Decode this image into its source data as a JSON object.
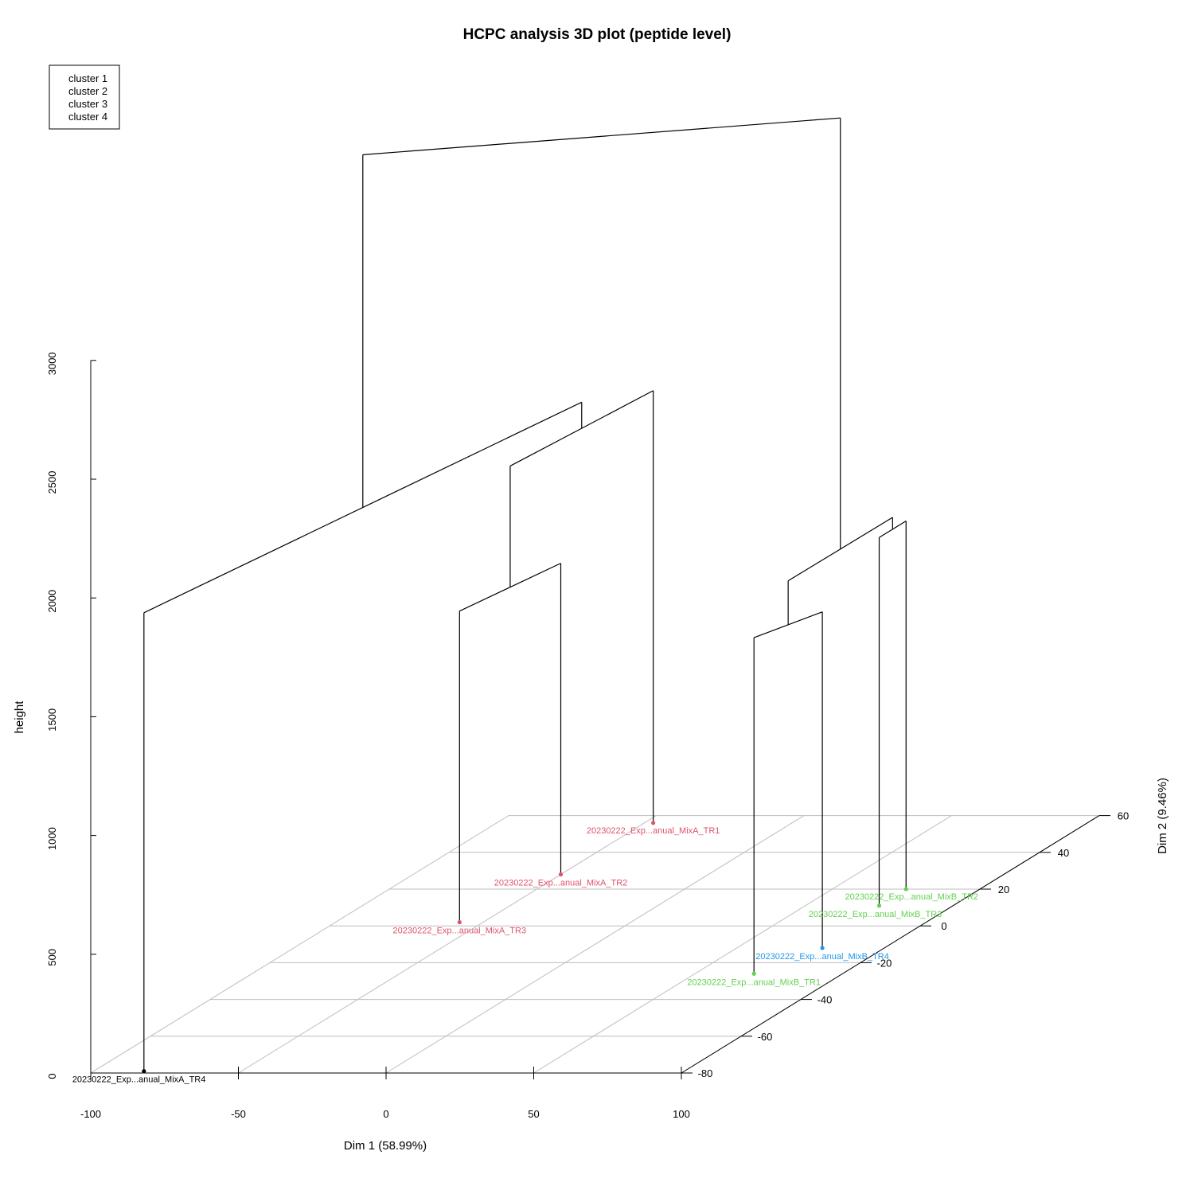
{
  "chart_data": {
    "type": "scatter3d-dendrogram",
    "title": "HCPC analysis 3D plot (peptide level)",
    "xlabel": "Dim 1 (58.99%)",
    "ylabel": "Dim 2 (9.46%)",
    "zlabel": "height",
    "xlim": [
      -100,
      100
    ],
    "ylim": [
      -80,
      60
    ],
    "zlim": [
      0,
      3000
    ],
    "x_ticks": [
      "-100",
      "-50",
      "0",
      "50",
      "100"
    ],
    "y_ticks": [
      "-80",
      "-60",
      "-40",
      "-20",
      "0",
      "20",
      "40",
      "60"
    ],
    "z_ticks": [
      "0",
      "500",
      "1000",
      "1500",
      "2000",
      "2500",
      "3000"
    ],
    "grid": true,
    "legend": {
      "placement": "top-left",
      "entries": [
        {
          "label": "cluster 1",
          "color": "#000000"
        },
        {
          "label": "cluster 2",
          "color": "#DF536B"
        },
        {
          "label": "cluster 3",
          "color": "#61D04F"
        },
        {
          "label": "cluster 4",
          "color": "#2297E6"
        }
      ]
    },
    "points": [
      {
        "label": "20230222_Exp...anual_MixA_TR4",
        "cluster": 1,
        "x": -83,
        "y": -79
      },
      {
        "label": "20230222_Exp...anual_MixA_TR3",
        "cluster": 2,
        "x": -58,
        "y": 2
      },
      {
        "label": "20230222_Exp...anual_MixA_TR2",
        "cluster": 2,
        "x": -50,
        "y": 28
      },
      {
        "label": "20230222_Exp...anual_MixA_TR1",
        "cluster": 2,
        "x": -47,
        "y": 56
      },
      {
        "label": "20230222_Exp...anual_MixB_TR1",
        "cluster": 3,
        "x": 70,
        "y": -26
      },
      {
        "label": "20230222_Exp...anual_MixB_TR4",
        "cluster": 4,
        "x": 79,
        "y": -12
      },
      {
        "label": "20230222_Exp...anual_MixB_TR3",
        "cluster": 3,
        "x": 75,
        "y": 11
      },
      {
        "label": "20230222_Exp...anual_MixB_TR2",
        "cluster": 3,
        "x": 75,
        "y": 20
      }
    ]
  }
}
